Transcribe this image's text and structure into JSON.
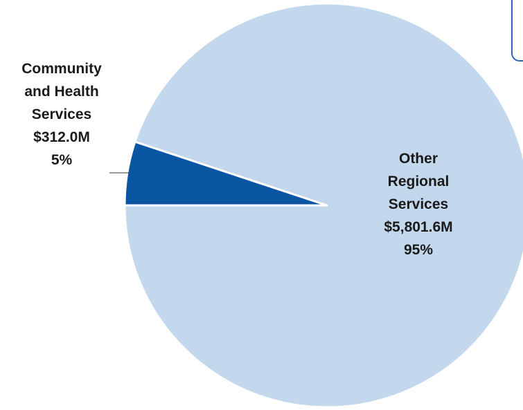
{
  "chart_data": {
    "type": "pie",
    "title": "",
    "slices": [
      {
        "name": "Community and Health Services",
        "value": 312.0,
        "value_label": "$312.0M",
        "percent_label": "5%",
        "color": "#0a56a3"
      },
      {
        "name": "Other Regional Services",
        "value": 5801.6,
        "value_label": "$5,801.6M",
        "percent_label": "95%",
        "color": "#c3d8ec"
      }
    ],
    "labels": {
      "community": {
        "lines": [
          "Community",
          "and Health",
          "Services"
        ],
        "value": "$312.0M",
        "percent": "5%"
      },
      "other": {
        "lines": [
          "Other",
          "Regional",
          "Services"
        ],
        "value": "$5,801.6M",
        "percent": "95%"
      }
    },
    "legend": "none"
  }
}
